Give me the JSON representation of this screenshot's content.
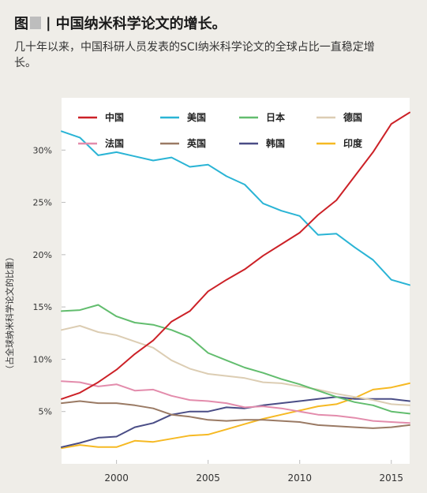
{
  "header": {
    "fig_label": "图",
    "separator": "|",
    "title": "中国纳米科学论文的增长。",
    "subtitle": "几十年以来，中国科研人员发表的SCI纳米科学论文的全球占比一直稳定增长。"
  },
  "chart_data": {
    "type": "line",
    "title": "中国纳米科学论文的增长。",
    "xlabel": "",
    "ylabel": "（占全球纳米科学论文的比重）",
    "xlim": [
      1997,
      2016
    ],
    "ylim": [
      0,
      35
    ],
    "x_ticks": [
      2000,
      2005,
      2010,
      2015
    ],
    "x_tick_labels": [
      "2000",
      "2005",
      "2010",
      "2015"
    ],
    "y_ticks": [
      5,
      10,
      15,
      20,
      25,
      30
    ],
    "y_tick_labels": [
      "5%",
      "10%",
      "15%",
      "20%",
      "25%",
      "30%"
    ],
    "grid": "none",
    "legend_position": "top",
    "x": [
      1997,
      1998,
      1999,
      2000,
      2001,
      2002,
      2003,
      2004,
      2005,
      2006,
      2007,
      2008,
      2009,
      2010,
      2011,
      2012,
      2013,
      2014,
      2015,
      2016
    ],
    "series": [
      {
        "name": "中国",
        "color": "#cc2127",
        "values": [
          6.2,
          6.8,
          7.8,
          9.0,
          10.5,
          11.8,
          13.6,
          14.6,
          16.5,
          17.6,
          18.6,
          19.9,
          21.0,
          22.1,
          23.8,
          25.2,
          27.5,
          29.8,
          32.5,
          33.6
        ]
      },
      {
        "name": "美国",
        "color": "#2ab4d5",
        "values": [
          31.8,
          31.2,
          29.5,
          29.8,
          29.4,
          29.0,
          29.3,
          28.4,
          28.6,
          27.5,
          26.7,
          24.9,
          24.2,
          23.7,
          21.9,
          22.0,
          20.7,
          19.5,
          17.6,
          17.1
        ]
      },
      {
        "name": "日本",
        "color": "#62bd6e",
        "values": [
          14.6,
          14.7,
          15.2,
          14.1,
          13.5,
          13.3,
          12.8,
          12.1,
          10.6,
          9.9,
          9.2,
          8.7,
          8.1,
          7.6,
          7.0,
          6.4,
          5.9,
          5.6,
          5.0,
          4.8
        ]
      },
      {
        "name": "德国",
        "color": "#dccdb3",
        "values": [
          12.8,
          13.2,
          12.6,
          12.3,
          11.7,
          11.1,
          9.9,
          9.1,
          8.6,
          8.4,
          8.2,
          7.8,
          7.7,
          7.4,
          7.1,
          6.7,
          6.4,
          6.1,
          5.7,
          5.6
        ]
      },
      {
        "name": "法国",
        "color": "#e38cac",
        "values": [
          7.9,
          7.8,
          7.4,
          7.6,
          7.0,
          7.1,
          6.5,
          6.1,
          6.0,
          5.8,
          5.4,
          5.5,
          5.3,
          5.0,
          4.7,
          4.6,
          4.4,
          4.1,
          4.0,
          3.9
        ]
      },
      {
        "name": "英国",
        "color": "#9a7a64",
        "values": [
          5.8,
          6.0,
          5.8,
          5.8,
          5.6,
          5.3,
          4.7,
          4.5,
          4.2,
          4.1,
          4.2,
          4.2,
          4.1,
          4.0,
          3.7,
          3.6,
          3.5,
          3.4,
          3.5,
          3.7
        ]
      },
      {
        "name": "韩国",
        "color": "#4a4d86",
        "values": [
          1.6,
          2.0,
          2.5,
          2.6,
          3.5,
          3.9,
          4.7,
          5.0,
          5.0,
          5.4,
          5.3,
          5.6,
          5.8,
          6.0,
          6.2,
          6.4,
          6.2,
          6.2,
          6.2,
          6.0
        ]
      },
      {
        "name": "印度",
        "color": "#f6b923",
        "values": [
          1.5,
          1.8,
          1.6,
          1.6,
          2.2,
          2.1,
          2.4,
          2.7,
          2.8,
          3.3,
          3.8,
          4.3,
          4.7,
          5.1,
          5.5,
          5.7,
          6.3,
          7.1,
          7.3,
          7.7
        ]
      }
    ]
  }
}
